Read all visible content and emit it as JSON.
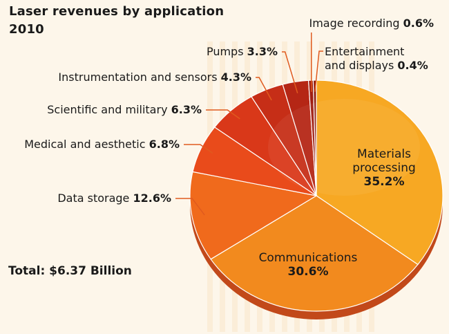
{
  "chart_data": {
    "type": "pie",
    "title": "Laser revenues by application",
    "subtitle": "2010",
    "total_label": "Total: $6.37 Billion",
    "slices": [
      {
        "name": "Materials processing",
        "lines": [
          "Materials",
          "processing"
        ],
        "value": 35.2,
        "value_label": "35.2%",
        "color": "#f7a823"
      },
      {
        "name": "Communications",
        "lines": [
          "Communications"
        ],
        "value": 30.6,
        "value_label": "30.6%",
        "color": "#f28a1e"
      },
      {
        "name": "Data storage",
        "lines": [
          "Data storage"
        ],
        "value": 12.6,
        "value_label": "12.6%",
        "color": "#f06a1c"
      },
      {
        "name": "Medical and aesthetic",
        "lines": [
          "Medical and aesthetic"
        ],
        "value": 6.8,
        "value_label": "6.8%",
        "color": "#e94b1b"
      },
      {
        "name": "Scientific and military",
        "lines": [
          "Scientific and military"
        ],
        "value": 6.3,
        "value_label": "6.3%",
        "color": "#d93819"
      },
      {
        "name": "Instrumentation and sensors",
        "lines": [
          "Instrumentation and sensors"
        ],
        "value": 4.3,
        "value_label": "4.3%",
        "color": "#c62e17"
      },
      {
        "name": "Pumps",
        "lines": [
          "Pumps"
        ],
        "value": 3.3,
        "value_label": "3.3%",
        "color": "#b52615"
      },
      {
        "name": "Image recording",
        "lines": [
          "Image recording"
        ],
        "value": 0.6,
        "value_label": "0.6%",
        "color": "#a01e12"
      },
      {
        "name": "Entertainment and displays",
        "lines": [
          "Entertainment",
          "and displays"
        ],
        "value": 0.4,
        "value_label": "0.4%",
        "color": "#8e1a10"
      }
    ]
  }
}
